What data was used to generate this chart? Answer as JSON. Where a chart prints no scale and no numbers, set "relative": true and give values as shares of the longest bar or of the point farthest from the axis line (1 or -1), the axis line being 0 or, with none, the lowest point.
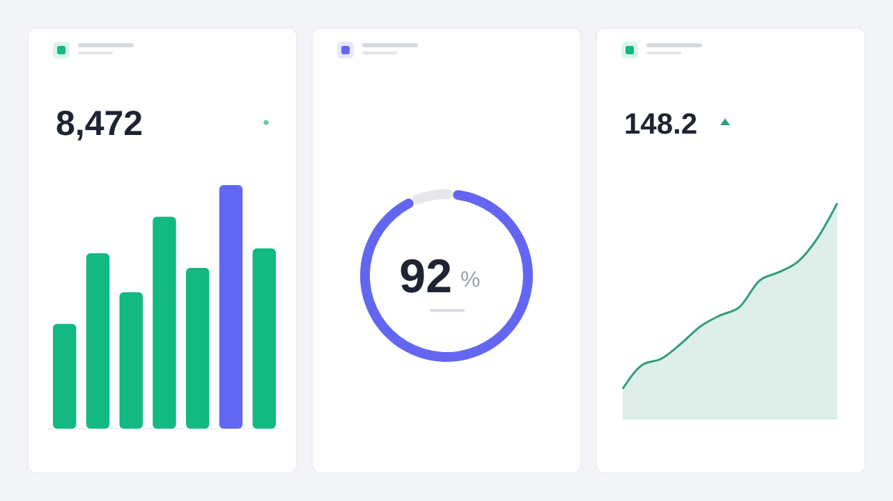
{
  "chart_data": [
    {
      "type": "bar",
      "title": "8,472",
      "relative": true,
      "categories": [
        null,
        null,
        null,
        null,
        null,
        null,
        null
      ],
      "values": [
        0.43,
        0.72,
        0.56,
        0.87,
        0.66,
        1,
        0.74
      ],
      "colors": [
        "#12b981",
        "#12b981",
        "#12b981",
        "#12b981",
        "#12b981",
        "#6366f1",
        "#12b981"
      ]
    },
    {
      "type": "donut",
      "categories": [
        null,
        null
      ],
      "values": [
        92,
        8
      ],
      "colors": [
        "#6366f1",
        "#e5e7eb"
      ],
      "value_labels": [
        "92",
        null
      ],
      "annotations": [
        "%"
      ]
    },
    {
      "type": "area",
      "title": "148.2",
      "relative": true,
      "categories": [
        null,
        null,
        null,
        null,
        null,
        null,
        null,
        null,
        null,
        null,
        null,
        null
      ],
      "series": [
        {
          "color": "#2f9e78",
          "values": [
            0.14,
            0.25,
            0.28,
            0.35,
            0.43,
            0.48,
            0.52,
            0.64,
            0.68,
            0.73,
            0.84,
            1
          ]
        }
      ]
    }
  ]
}
